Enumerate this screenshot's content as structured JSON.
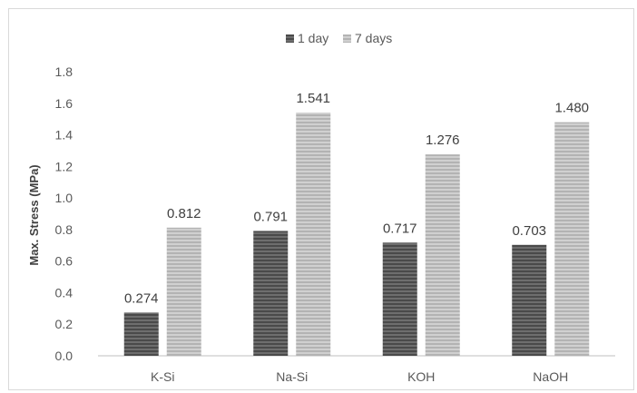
{
  "chart_data": {
    "type": "bar",
    "title": "",
    "xlabel": "",
    "ylabel": "Max. Stress (MPa)",
    "ylim": [
      0,
      1.8
    ],
    "yticks": [
      "0.0",
      "0.2",
      "0.4",
      "0.6",
      "0.8",
      "1.0",
      "1.2",
      "1.4",
      "1.6",
      "1.8"
    ],
    "categories": [
      "K-Si",
      "Na-Si",
      "KOH",
      "NaOH"
    ],
    "series": [
      {
        "name": "1 day",
        "values": [
          0.274,
          0.791,
          0.717,
          0.703
        ],
        "labels": [
          "0.274",
          "0.791",
          "0.717",
          "0.703"
        ],
        "color": "#595959"
      },
      {
        "name": "7 days",
        "values": [
          0.812,
          1.541,
          1.276,
          1.48
        ],
        "labels": [
          "0.812",
          "1.541",
          "1.276",
          "1.480"
        ],
        "color": "#bfbfbf"
      }
    ],
    "grid": false,
    "legend_position": "top-center",
    "bar_pattern": "horizontal-stripes"
  }
}
